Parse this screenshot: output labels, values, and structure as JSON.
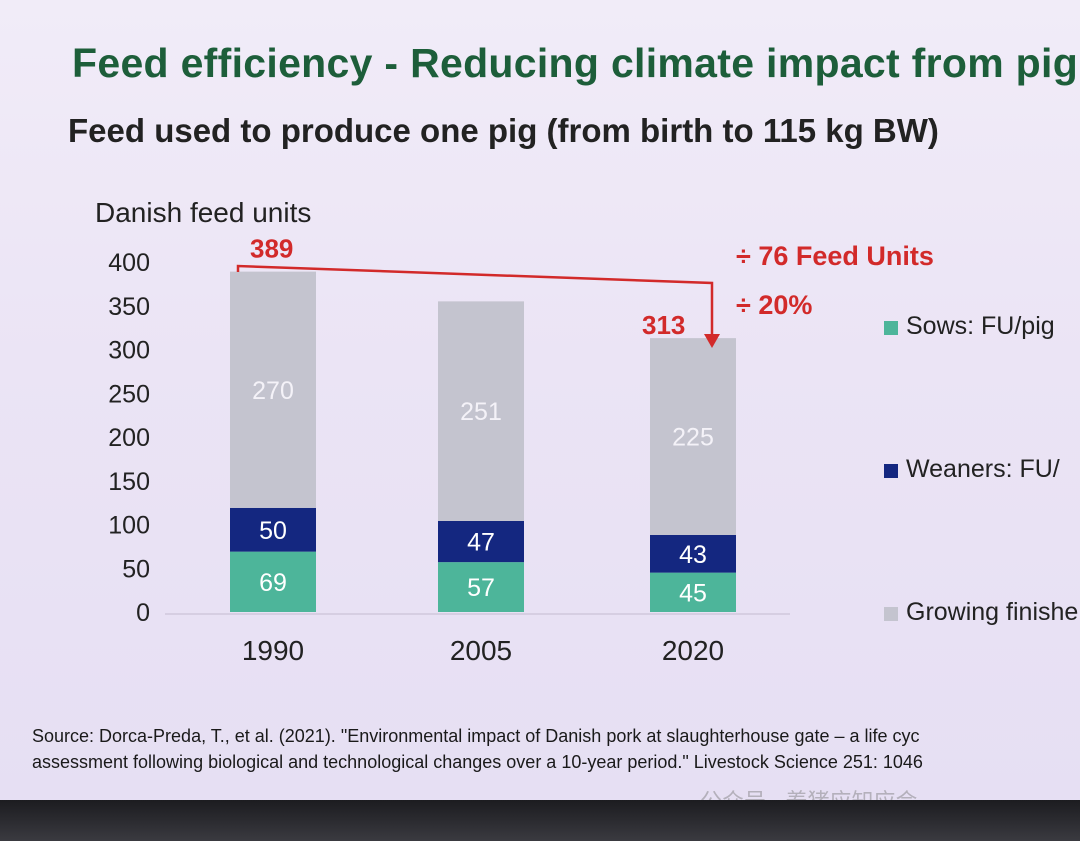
{
  "slide": {
    "title": "Feed efficiency - Reducing climate impact from pig",
    "subtitle": "Feed used to produce one pig (from birth to 115 kg BW)",
    "source_line1": "Source: Dorca-Preda, T., et al. (2021). \"Environmental impact of Danish pork at slaughterhouse gate – a life cyc",
    "source_line2": "assessment following biological and technological changes over a 10-year period.\" Livestock Science 251: 1046",
    "watermark": "公众号 · 养猪应知应会"
  },
  "chart_data": {
    "type": "bar",
    "stacked": true,
    "ylabel": "Danish feed units",
    "ylim": [
      0,
      400
    ],
    "yticks": [
      0,
      50,
      100,
      150,
      200,
      250,
      300,
      350,
      400
    ],
    "categories": [
      "1990",
      "2005",
      "2020"
    ],
    "series": [
      {
        "name": "Sows: FU/pig",
        "color": "#4db59a",
        "values": [
          69,
          57,
          45
        ]
      },
      {
        "name": "Weaners: FU/",
        "color": "#142780",
        "values": [
          50,
          47,
          43
        ]
      },
      {
        "name": "Growing finishe",
        "color": "#c4c4cf",
        "values": [
          270,
          251,
          225
        ]
      }
    ],
    "totals": [
      {
        "category": "1990",
        "label": "389"
      },
      {
        "category": "2020",
        "label": "313"
      }
    ],
    "annotations": [
      "÷ 76 Feed  Units",
      "÷ 20%"
    ],
    "grid": false,
    "legend_position": "right",
    "accent_color": "#d22a2a"
  }
}
